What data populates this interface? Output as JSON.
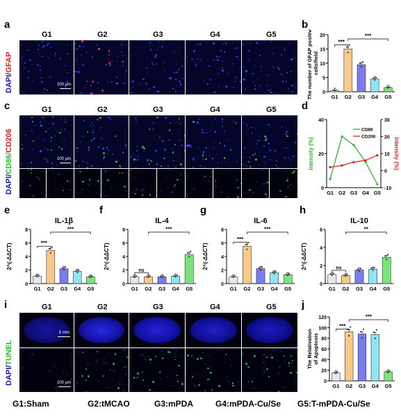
{
  "panels": {
    "a": {
      "letter": "a",
      "stain_dapi": "DAPI/",
      "stain_marker": "GFAP",
      "scale": "100 μm"
    },
    "b": {
      "letter": "b"
    },
    "c": {
      "letter": "c",
      "stain_dapi": "DAPI/",
      "stain_m1": "CD86/",
      "stain_m2": "CD206",
      "scale": "100 μm"
    },
    "d": {
      "letter": "d"
    },
    "e": {
      "letter": "e"
    },
    "f": {
      "letter": "f"
    },
    "g": {
      "letter": "g"
    },
    "h": {
      "letter": "h"
    },
    "i": {
      "letter": "i",
      "stain_dapi": "DAPI/",
      "stain_marker": "TUNEL",
      "scale_top": "5 mm",
      "scale_bottom": "200 μm"
    },
    "j": {
      "letter": "j"
    }
  },
  "group_headers": [
    "G1",
    "G2",
    "G3",
    "G4",
    "G5"
  ],
  "legend": [
    "G1:Sham",
    "G2:tMCAO",
    "G3:mPDA",
    "G4:mPDA-Cu/Se",
    "G5:T-mPDA-Cu/Se"
  ],
  "colors": {
    "G1": "#e8e8e8",
    "G2": "#f9c98c",
    "G3": "#7b7bf0",
    "G4": "#8fe6f2",
    "G5": "#7be37b",
    "CD86": "#2db82d",
    "CD206": "#d42020"
  },
  "chart_data": [
    {
      "id": "b",
      "type": "bar",
      "categories": [
        "G1",
        "G2",
        "G3",
        "G4",
        "G5"
      ],
      "values": [
        0.5,
        15,
        9.5,
        4.5,
        1.5
      ],
      "ylabel": "The number of GFAP positive cells/field",
      "ylim": [
        0,
        20
      ],
      "yticks": [
        0,
        5,
        10,
        15,
        20
      ],
      "sig": [
        {
          "from": 0,
          "to": 1,
          "text": "***"
        },
        {
          "from": 1,
          "to": 4,
          "text": "***"
        }
      ]
    },
    {
      "id": "d",
      "type": "line",
      "categories": [
        "G1",
        "G2",
        "G3",
        "G4",
        "G5"
      ],
      "series": [
        {
          "name": "CD86",
          "values": [
            5,
            30,
            25,
            15,
            2
          ],
          "axis": "left"
        },
        {
          "name": "CD206",
          "values": [
            2,
            3,
            5,
            6,
            9
          ],
          "axis": "right"
        }
      ],
      "ylabel_left": "Intensity (%)",
      "ylabel_right": "Intensity (%)",
      "ylim_left": [
        0,
        40
      ],
      "yticks_left": [
        0,
        20,
        40
      ],
      "ylim_right": [
        -10,
        30
      ],
      "yticks_right": [
        -10,
        0,
        10,
        20,
        30
      ]
    },
    {
      "id": "e",
      "type": "bar",
      "title": "IL-1β",
      "categories": [
        "G1",
        "G2",
        "G3",
        "G4",
        "G5"
      ],
      "values": [
        1.1,
        4.9,
        2.2,
        1.8,
        1.0
      ],
      "ylabel": "2^(-ΔΔCT)",
      "ylim": [
        0,
        8
      ],
      "yticks": [
        0,
        2,
        4,
        6,
        8
      ],
      "sig": [
        {
          "from": 0,
          "to": 1,
          "text": "***"
        },
        {
          "from": 1,
          "to": 4,
          "text": "***"
        }
      ]
    },
    {
      "id": "f",
      "type": "bar",
      "title": "IL-4",
      "categories": [
        "G1",
        "G2",
        "G3",
        "G4",
        "G5"
      ],
      "values": [
        1.0,
        1.0,
        1.0,
        1.1,
        4.3
      ],
      "ylabel": "2^(-ΔΔCT)",
      "ylim": [
        0,
        8
      ],
      "yticks": [
        0,
        2,
        4,
        6,
        8
      ],
      "sig": [
        {
          "from": 0,
          "to": 1,
          "text": "ns"
        },
        {
          "from": 1,
          "to": 4,
          "text": "***"
        }
      ]
    },
    {
      "id": "g",
      "type": "bar",
      "title": "IL-6",
      "categories": [
        "G1",
        "G2",
        "G3",
        "G4",
        "G5"
      ],
      "values": [
        1.0,
        5.5,
        2.2,
        1.6,
        1.3
      ],
      "ylabel": "2^(-ΔΔCT)",
      "ylim": [
        0,
        8
      ],
      "yticks": [
        0,
        2,
        4,
        6,
        8
      ],
      "sig": [
        {
          "from": 0,
          "to": 1,
          "text": "***"
        },
        {
          "from": 1,
          "to": 4,
          "text": "***"
        }
      ]
    },
    {
      "id": "h",
      "type": "bar",
      "title": "IL-10",
      "categories": [
        "G1",
        "G2",
        "G3",
        "G4",
        "G5"
      ],
      "values": [
        1.0,
        0.9,
        1.5,
        1.6,
        2.9
      ],
      "ylabel": "2^(-ΔΔCT)",
      "ylim": [
        0,
        6
      ],
      "yticks": [
        0,
        2,
        4,
        6
      ],
      "sig": [
        {
          "from": 0,
          "to": 1,
          "text": "ns"
        },
        {
          "from": 1,
          "to": 4,
          "text": "**"
        }
      ]
    },
    {
      "id": "j",
      "type": "bar",
      "categories": [
        "G1",
        "G2",
        "G3",
        "G4",
        "G5"
      ],
      "values": [
        15,
        92,
        88,
        87,
        17
      ],
      "ylabel": "The Relativation of Apoptosis",
      "ylim": [
        0,
        120
      ],
      "yticks": [
        0,
        20,
        40,
        60,
        80,
        100,
        120
      ],
      "sig": [
        {
          "from": 0,
          "to": 1,
          "text": "***"
        },
        {
          "from": 1,
          "to": 4,
          "text": "***"
        }
      ]
    }
  ]
}
